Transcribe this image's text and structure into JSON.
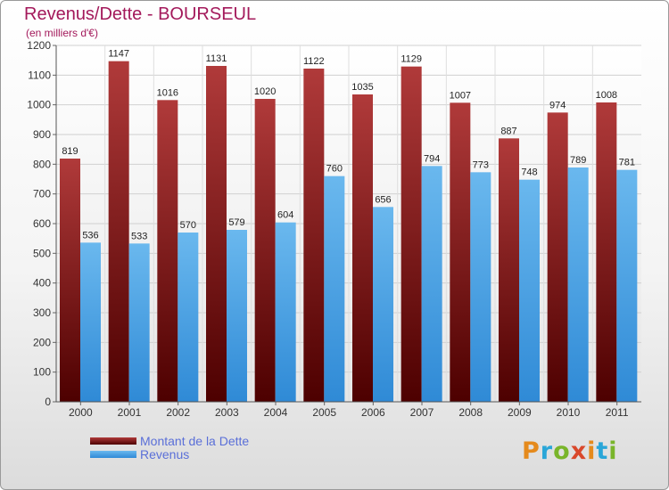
{
  "header": {
    "title": "Revenus/Dette - BOURSEUL",
    "subtitle": "(en milliers d'€)"
  },
  "legend": {
    "debt_label": "Montant de la Dette",
    "revenue_label": "Revenus"
  },
  "logo": {
    "text": "Proxiti"
  },
  "colors": {
    "debt_top": "#b03a3a",
    "debt_bottom": "#4d0000",
    "revenue_top": "#6ab8ee",
    "revenue_bottom": "#2f8ad6",
    "title": "#a3195b",
    "legend_text": "#5a6fd8"
  },
  "chart_data": {
    "type": "bar",
    "title": "Revenus/Dette - BOURSEUL",
    "subtitle": "(en milliers d'€)",
    "xlabel": "",
    "ylabel": "",
    "ylim": [
      0,
      1200
    ],
    "yticks": [
      0,
      100,
      200,
      300,
      400,
      500,
      600,
      700,
      800,
      900,
      1000,
      1100,
      1200
    ],
    "grid": true,
    "legend_position": "bottom-left",
    "categories": [
      "2000",
      "2001",
      "2002",
      "2003",
      "2004",
      "2005",
      "2006",
      "2007",
      "2008",
      "2009",
      "2010",
      "2011"
    ],
    "series": [
      {
        "name": "Montant de la Dette",
        "values": [
          819,
          1147,
          1016,
          1131,
          1020,
          1122,
          1035,
          1129,
          1007,
          887,
          974,
          1008
        ]
      },
      {
        "name": "Revenus",
        "values": [
          536,
          533,
          570,
          579,
          604,
          760,
          656,
          794,
          773,
          748,
          789,
          781
        ]
      }
    ]
  }
}
